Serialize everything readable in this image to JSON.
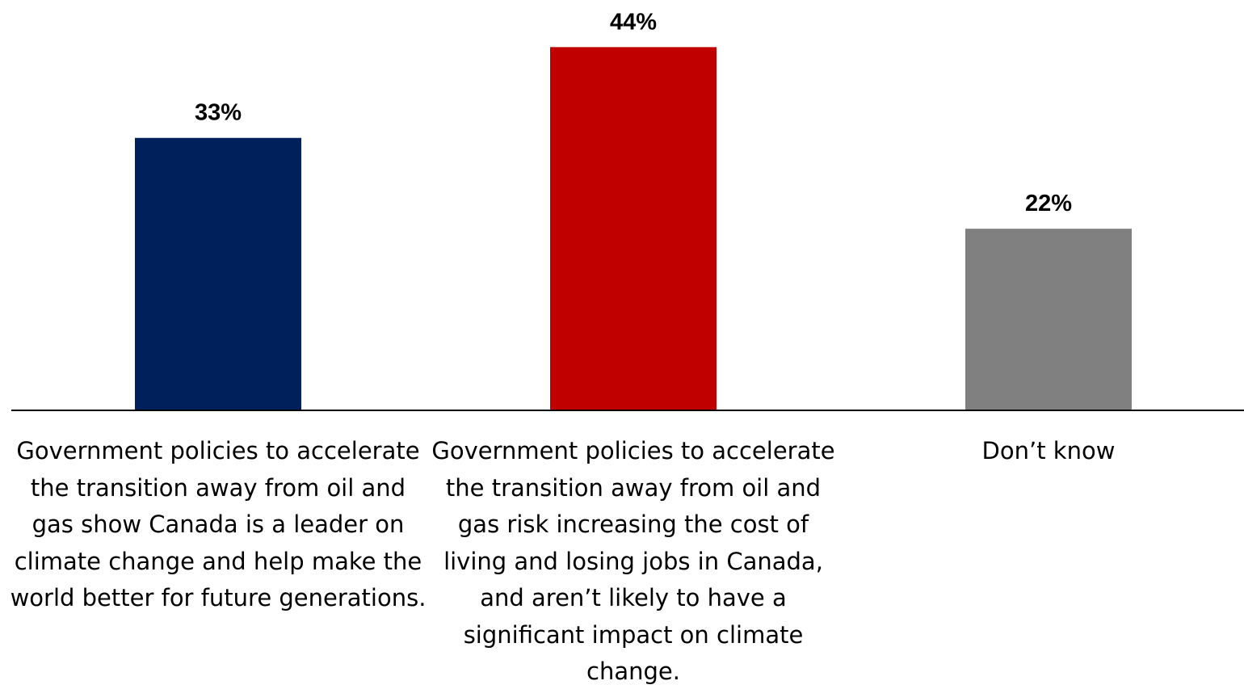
{
  "chart_data": {
    "type": "bar",
    "categories": [
      "Government policies to accelerate the transition away from oil and gas show Canada is a leader on climate change and help make the world better for future generations.",
      "Government policies to accelerate the transition away from oil and gas risk increasing the cost of living and losing jobs in Canada, and aren’t likely to have a significant impact on climate change.",
      "Don’t know"
    ],
    "values": [
      33,
      44,
      22
    ],
    "value_labels": [
      "33%",
      "44%",
      "22%"
    ],
    "colors": [
      "#00205b",
      "#c00000",
      "#808080"
    ],
    "axis_color": "#000000",
    "ylim": [
      0,
      100
    ],
    "grid": false,
    "legend": "none"
  }
}
